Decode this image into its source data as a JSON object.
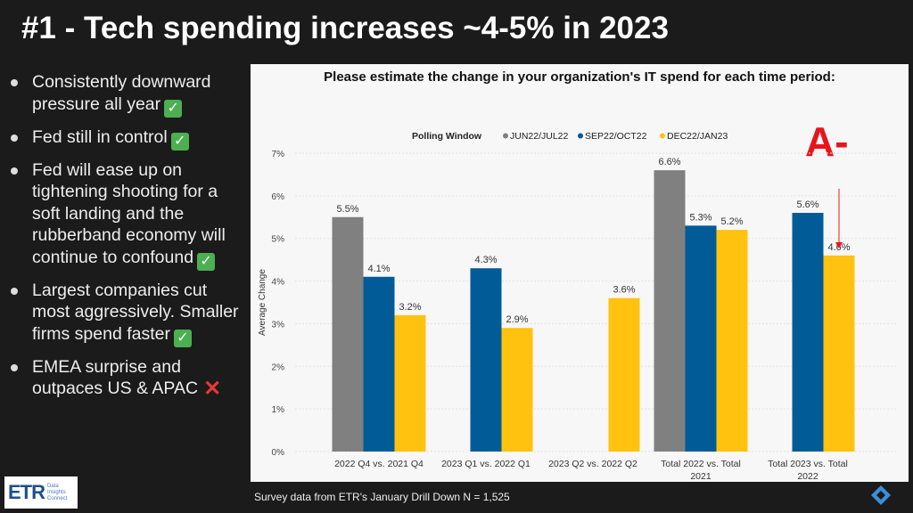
{
  "slide": {
    "title": "#1 - Tech spending increases ~4-5% in 2023",
    "bullets": [
      {
        "text": "Consistently downward pressure all year",
        "mark": "check"
      },
      {
        "text": "Fed still in control",
        "mark": "check"
      },
      {
        "text": "Fed will ease up on tightening shooting for a soft landing and the rubberband economy will continue to confound",
        "mark": "check"
      },
      {
        "text": "Largest companies cut most aggressively. Smaller firms spend faster",
        "mark": "check"
      },
      {
        "text": "EMEA surprise and outpaces US & APAC",
        "mark": "cross"
      }
    ],
    "check_glyph": "✓",
    "cross_glyph": "✕",
    "grade": "A-",
    "footnote": "Survey data from ETR's January Drill Down N = 1,525",
    "logo": {
      "mark": "ETR",
      "tagline": "Data Insights Connect"
    }
  },
  "chart_data": {
    "type": "bar",
    "title": "Please estimate the change in your organization's IT spend for each time period:",
    "ylabel": "Average Change",
    "legend_title": "Polling Window",
    "legend_position": "top",
    "ylim": [
      0,
      7
    ],
    "yticks": [
      "0%",
      "1%",
      "2%",
      "3%",
      "4%",
      "5%",
      "6%",
      "7%"
    ],
    "grid": true,
    "categories": [
      "2022 Q4 vs. 2021 Q4",
      "2023 Q1 vs. 2022 Q1",
      "2023 Q2 vs. 2022 Q2",
      "Total 2022 vs. Total 2021",
      "Total 2023 vs. Total 2022"
    ],
    "series": [
      {
        "name": "JUN22/JUL22",
        "color": "#808080",
        "values": [
          5.5,
          null,
          null,
          6.6,
          null
        ]
      },
      {
        "name": "SEP22/OCT22",
        "color": "#005b96",
        "values": [
          4.1,
          4.3,
          null,
          5.3,
          5.6
        ]
      },
      {
        "name": "DEC22/JAN23",
        "color": "#ffc20e",
        "values": [
          3.2,
          2.9,
          3.6,
          5.2,
          4.6
        ]
      }
    ]
  }
}
